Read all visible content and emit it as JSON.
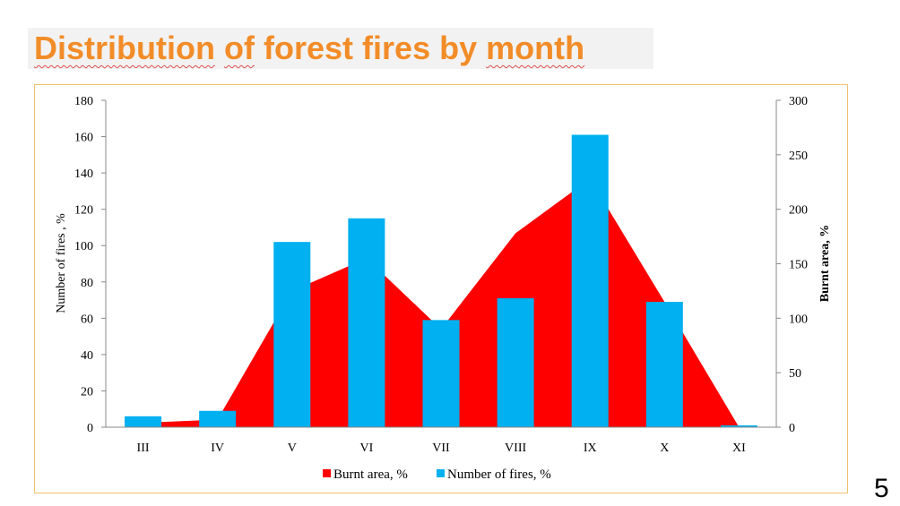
{
  "title": {
    "words": [
      "Distribution",
      "of",
      "forest",
      "fires",
      "by",
      "month"
    ]
  },
  "slide_number": "5",
  "colors": {
    "title": "#f28c28",
    "burnt_area": "#ff0000",
    "number_of_fires": "#00b0f0",
    "frame": "#f0c070"
  },
  "chart_data": {
    "type": "bar",
    "categories": [
      "III",
      "IV",
      "V",
      "VI",
      "VII",
      "VIII",
      "IX",
      "X",
      "XI"
    ],
    "series": [
      {
        "name": "Burnt area, %",
        "type": "area",
        "axis": "right",
        "values": [
          4,
          7,
          125,
          155,
          90,
          178,
          228,
          115,
          0
        ]
      },
      {
        "name": "Number of fires, %",
        "type": "bar",
        "axis": "left",
        "values": [
          6,
          9,
          102,
          115,
          59,
          71,
          161,
          69,
          1
        ]
      }
    ],
    "ylabel": "Number of fires , %",
    "ylabel_right": "Burnt area, %",
    "ylim": [
      0,
      180
    ],
    "ylim_right": [
      0,
      300
    ],
    "yticks": [
      "0",
      "20",
      "40",
      "60",
      "80",
      "100",
      "120",
      "140",
      "160",
      "180"
    ],
    "yticks_right": [
      "0",
      "50",
      "100",
      "150",
      "200",
      "250",
      "300"
    ],
    "legend_position": "bottom",
    "grid": false
  }
}
